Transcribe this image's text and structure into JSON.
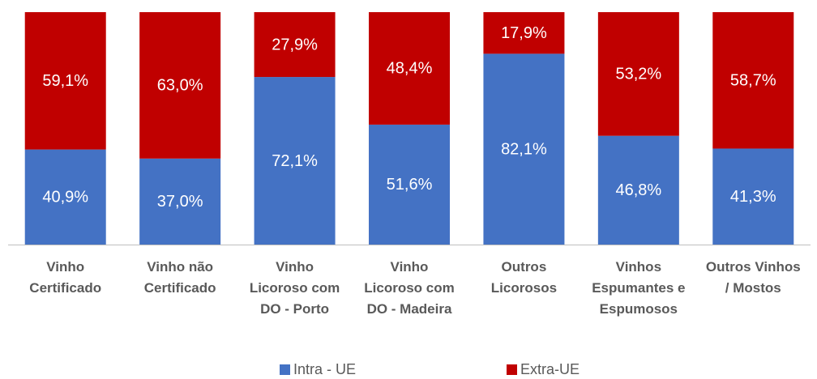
{
  "chart_data": {
    "type": "stacked_bar_100",
    "categories": [
      "Vinho Certificado",
      "Vinho não Certificado",
      "Vinho Licoroso com DO - Porto",
      "Vinho Licoroso com DO - Madeira",
      "Outros Licorosos",
      "Vinhos Espumantes e Espumosos",
      "Outros Vinhos / Mostos"
    ],
    "series": [
      {
        "name": "Intra - UE",
        "color": "#4472c4",
        "values": [
          40.9,
          37.0,
          72.1,
          51.6,
          82.1,
          46.8,
          41.3
        ],
        "value_labels": [
          "40,9%",
          "37,0%",
          "72,1%",
          "51,6%",
          "82,1%",
          "46,8%",
          "41,3%"
        ]
      },
      {
        "name": "Extra-UE",
        "color": "#c00000",
        "values": [
          59.1,
          63.0,
          27.9,
          48.4,
          17.9,
          53.2,
          58.7
        ],
        "value_labels": [
          "59,1%",
          "63,0%",
          "27,9%",
          "48,4%",
          "17,9%",
          "53,2%",
          "58,7%"
        ]
      }
    ],
    "ylim": [
      0,
      100
    ],
    "legend": "bottom"
  }
}
